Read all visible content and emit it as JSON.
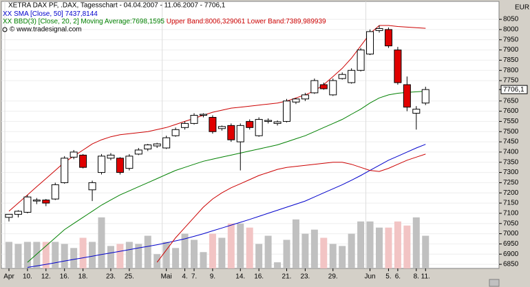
{
  "chart_data": {
    "type": "candlestick",
    "title": "XETRA DAX PF, .DAX, Tagesschart - 04.04.2007 - 11.06.2007 - 7706,1",
    "source": "© www.tradesignal.com",
    "unit": "EUR",
    "categories": [
      "Apr",
      null,
      "10.",
      null,
      "12.",
      null,
      "16.",
      null,
      "18.",
      null,
      null,
      "23.",
      null,
      "25.",
      null,
      null,
      null,
      "Mai",
      null,
      "4.",
      "7.",
      null,
      "9.",
      null,
      null,
      "14.",
      null,
      "16.",
      null,
      null,
      "21.",
      null,
      "23.",
      null,
      null,
      "29.",
      null,
      null,
      null,
      "Jun",
      null,
      "5.",
      "6.",
      null,
      "8.",
      "11."
    ],
    "open": [
      7080,
      7095,
      7105,
      7160,
      7165,
      7170,
      7250,
      7375,
      7385,
      7215,
      7300,
      7370,
      7370,
      7320,
      7390,
      7415,
      7430,
      7420,
      7480,
      7520,
      7540,
      7580,
      7570,
      7515,
      7530,
      7450,
      7550,
      7480,
      7550,
      7540,
      7550,
      7645,
      7660,
      7690,
      7730,
      7680,
      7760,
      7740,
      7800,
      7880,
      7995,
      8000,
      7900,
      7730,
      7590,
      7640
    ],
    "high": [
      7095,
      7115,
      7190,
      7175,
      7170,
      7250,
      7380,
      7410,
      7390,
      7260,
      7390,
      7395,
      7375,
      7390,
      7420,
      7440,
      7445,
      7480,
      7520,
      7550,
      7590,
      7590,
      7580,
      7530,
      7540,
      7540,
      7560,
      7570,
      7565,
      7555,
      7660,
      7665,
      7690,
      7760,
      7740,
      7760,
      7790,
      7810,
      7910,
      8000,
      8020,
      8010,
      7915,
      7770,
      7625,
      7720
    ],
    "low": [
      7060,
      7080,
      7100,
      7145,
      7135,
      7165,
      7245,
      7365,
      7320,
      7160,
      7290,
      7360,
      7290,
      7310,
      7385,
      7405,
      7420,
      7415,
      7475,
      7510,
      7535,
      7570,
      7490,
      7505,
      7450,
      7310,
      7510,
      7475,
      7540,
      7530,
      7545,
      7635,
      7650,
      7685,
      7705,
      7675,
      7755,
      7735,
      7795,
      7875,
      7985,
      7910,
      7730,
      7600,
      7510,
      7630
    ],
    "close": [
      7095,
      7110,
      7180,
      7165,
      7150,
      7240,
      7370,
      7400,
      7325,
      7250,
      7380,
      7385,
      7300,
      7380,
      7410,
      7435,
      7440,
      7470,
      7510,
      7540,
      7580,
      7585,
      7500,
      7525,
      7460,
      7530,
      7520,
      7560,
      7555,
      7548,
      7650,
      7660,
      7680,
      7750,
      7710,
      7750,
      7780,
      7800,
      7900,
      7990,
      8005,
      7920,
      7740,
      7620,
      7610,
      7706.1
    ],
    "volume": [
      6960,
      6950,
      6960,
      6960,
      6960,
      6960,
      6950,
      6930,
      6980,
      6960,
      7080,
      6940,
      6950,
      6960,
      6950,
      6990,
      6900,
      6960,
      6930,
      7000,
      6970,
      6910,
      7000,
      6980,
      7050,
      7050,
      7030,
      6950,
      6990,
      6860,
      6970,
      7070,
      7000,
      7020,
      6980,
      6950,
      6940,
      7000,
      7060,
      7060,
      7030,
      7030,
      7060,
      7040,
      7080,
      6990
    ],
    "up_color": "#ffffff",
    "down_color": "#e00000",
    "volume_up_color": "#c0c0c0",
    "volume_down_color": "#f2c4c4",
    "lines": [
      {
        "name": "XX SMA [Close, 50] 7437,8144",
        "color": "#0000cc",
        "values": [
          null,
          null,
          6835,
          6842,
          6850,
          6858,
          6866,
          6874,
          6882,
          6890,
          6898,
          6906,
          6914,
          6922,
          6930,
          6938,
          6946,
          6955,
          6965,
          6975,
          6987,
          7000,
          7014,
          7028,
          7042,
          7056,
          7070,
          7085,
          7100,
          7115,
          7130,
          7145,
          7160,
          7180,
          7200,
          7220,
          7240,
          7262,
          7285,
          7310,
          7335,
          7360,
          7380,
          7400,
          7420,
          7437.8
        ]
      },
      {
        "name": "XX BBD(3) [Close, 20, 2] Moving Average:7698,1595",
        "color": "#008000",
        "values": [
          null,
          null,
          6860,
          6900,
          6940,
          6980,
          7020,
          7050,
          7080,
          7110,
          7140,
          7165,
          7190,
          7210,
          7230,
          7250,
          7270,
          7290,
          7310,
          7325,
          7340,
          7355,
          7365,
          7375,
          7385,
          7395,
          7405,
          7415,
          7425,
          7435,
          7450,
          7465,
          7480,
          7500,
          7520,
          7540,
          7560,
          7585,
          7610,
          7640,
          7665,
          7680,
          7688,
          7692,
          7695,
          7698.2
        ]
      },
      {
        "name": "Upper Band:8006,329061",
        "color": "#cc0000",
        "values": [
          7110,
          7150,
          7190,
          7230,
          7270,
          7310,
          7350,
          7380,
          7410,
          7440,
          7460,
          7475,
          7485,
          7490,
          7495,
          7500,
          7510,
          7520,
          7535,
          7550,
          7565,
          7580,
          7595,
          7605,
          7615,
          7620,
          7625,
          7630,
          7635,
          7640,
          7650,
          7665,
          7680,
          7700,
          7730,
          7770,
          7810,
          7860,
          7920,
          7980,
          8020,
          8020,
          8015,
          8012,
          8009,
          8006.3
        ]
      },
      {
        "name": "Lower Band:7389,989939",
        "color": "#cc0000",
        "values": [
          null,
          null,
          null,
          null,
          null,
          null,
          null,
          null,
          null,
          null,
          null,
          null,
          null,
          null,
          null,
          null,
          6860,
          6920,
          6980,
          7030,
          7080,
          7130,
          7170,
          7200,
          7225,
          7245,
          7265,
          7285,
          7300,
          7315,
          7325,
          7330,
          7335,
          7340,
          7345,
          7350,
          7350,
          7340,
          7325,
          7310,
          7305,
          7320,
          7340,
          7360,
          7375,
          7389.99
        ]
      }
    ],
    "ylim": [
      6830,
      8138
    ],
    "yticks": [
      6850,
      6900,
      6950,
      7000,
      7050,
      7100,
      7150,
      7200,
      7250,
      7300,
      7350,
      7400,
      7450,
      7500,
      7550,
      7600,
      7650,
      {
        "value": 7706.1,
        "label": "7706,1"
      },
      7750,
      7800,
      7850,
      7900,
      7950,
      8000,
      8050
    ],
    "grid": true
  }
}
